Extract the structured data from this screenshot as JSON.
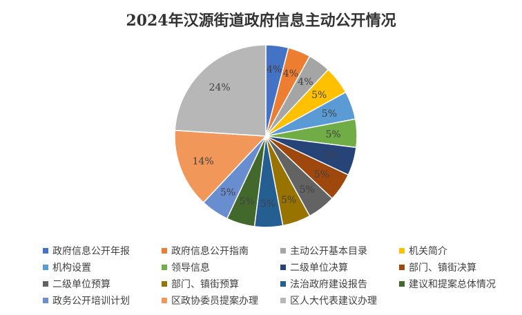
{
  "chart_data": {
    "type": "pie",
    "title": "2024年汉源街道政府信息主动公开情况",
    "legend_position": "bottom",
    "slices": [
      {
        "label": "政府信息公开年报",
        "value": 4,
        "value_label": "4%",
        "color": "#4472C4"
      },
      {
        "label": "政府信息公开指南",
        "value": 4,
        "value_label": "4%",
        "color": "#ED7D31"
      },
      {
        "label": "主动公开基本目录",
        "value": 4,
        "value_label": "4%",
        "color": "#A5A5A5"
      },
      {
        "label": "机关简介",
        "value": 5,
        "value_label": "5%",
        "color": "#FFC000"
      },
      {
        "label": "机构设置",
        "value": 5,
        "value_label": "5%",
        "color": "#5B9BD5"
      },
      {
        "label": "领导信息",
        "value": 5,
        "value_label": "5%",
        "color": "#70AD47"
      },
      {
        "label": "二级单位决算",
        "value": 5,
        "value_label": "5%",
        "color": "#264478"
      },
      {
        "label": "部门、镇街决算",
        "value": 5,
        "value_label": "5%",
        "color": "#9E480E"
      },
      {
        "label": "二级单位预算",
        "value": 5,
        "value_label": "5%",
        "color": "#636363"
      },
      {
        "label": "部门、镇街预算",
        "value": 5,
        "value_label": "5%",
        "color": "#997300"
      },
      {
        "label": "法治政府建设报告",
        "value": 5,
        "value_label": "5%",
        "color": "#255E91"
      },
      {
        "label": "建议和提案总体情况",
        "value": 5,
        "value_label": "5%",
        "color": "#43682B"
      },
      {
        "label": "政务公开培训计划",
        "value": 5,
        "value_label": "5%",
        "color": "#698ED0"
      },
      {
        "label": "区政协委员提案办理",
        "value": 14,
        "value_label": "14%",
        "color": "#F1975A"
      },
      {
        "label": "区人大代表建议办理",
        "value": 24,
        "value_label": "24%",
        "color": "#B7B7B7"
      }
    ]
  }
}
